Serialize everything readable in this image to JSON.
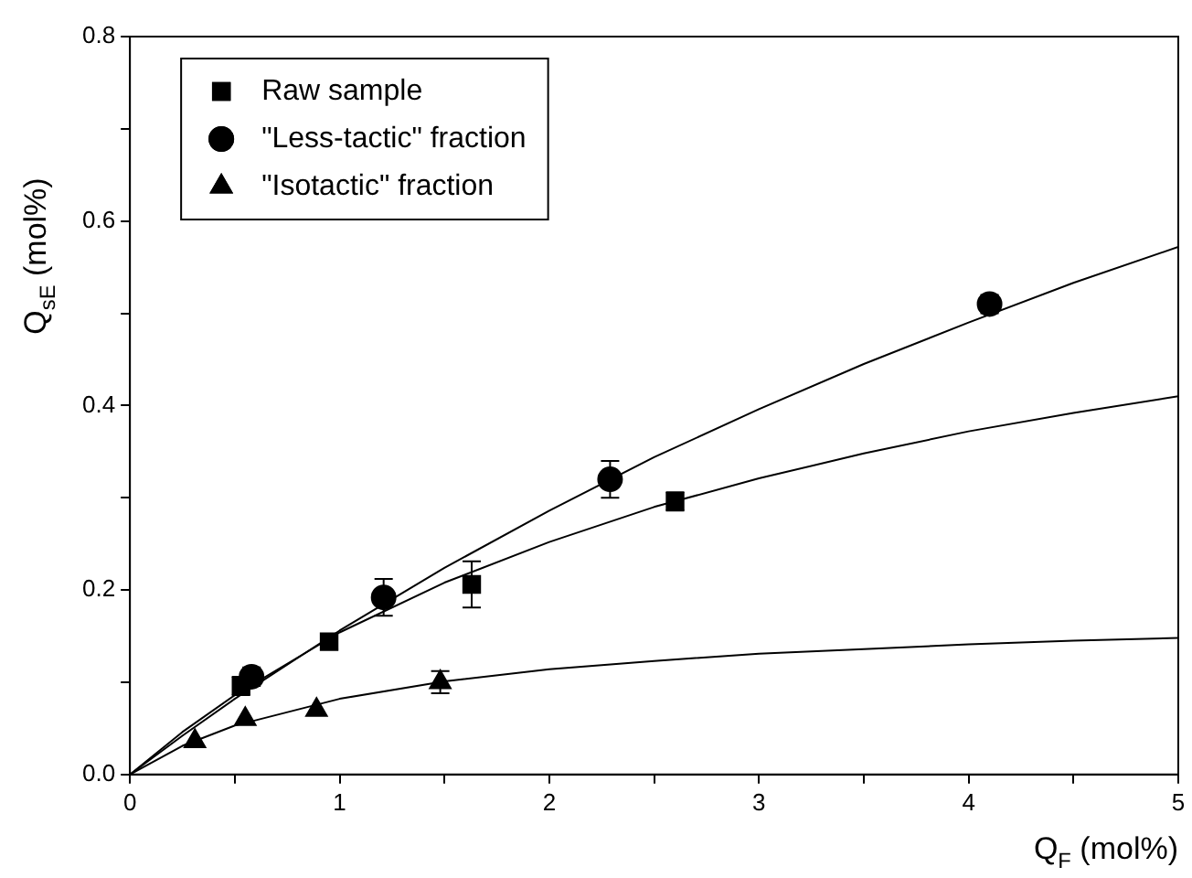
{
  "chart_data": {
    "type": "scatter",
    "xlabel": "Q$_{F}$ (mol%)",
    "ylabel": "Q$_{sE}$ (mol%)",
    "xlim": [
      0,
      5
    ],
    "xticks": [
      0,
      {
        "value": 0.5,
        "label": null
      },
      1,
      {
        "value": 1.5,
        "label": null
      },
      2,
      {
        "value": 2.5,
        "label": null
      },
      3,
      {
        "value": 3.5,
        "label": null
      },
      4,
      {
        "value": 4.5,
        "label": null
      },
      5
    ],
    "ylim": [
      0,
      0.8
    ],
    "yticks": [
      {
        "value": 0,
        "label": "0.0"
      },
      {
        "value": 0.1,
        "label": null
      },
      0.2,
      {
        "value": 0.3,
        "label": null
      },
      0.4,
      {
        "value": 0.5,
        "label": null
      },
      0.6,
      {
        "value": 0.7,
        "label": null
      },
      0.8
    ],
    "grid": false,
    "legend": "top left",
    "series": [
      {
        "name": "Raw sample",
        "type": "scatter",
        "marker": "square",
        "color": "#000000",
        "x": [
          0.53,
          0.95,
          1.63,
          2.6
        ],
        "values": [
          0.096,
          0.144,
          0.206,
          0.296
        ],
        "errors": [
          0.01,
          0.008,
          0.025,
          0.01
        ]
      },
      {
        "name": "\"Less-tactic\" fraction",
        "type": "scatter",
        "marker": "circle",
        "color": "#000000",
        "x": [
          0.58,
          1.21,
          2.29,
          4.1
        ],
        "values": [
          0.106,
          0.192,
          0.32,
          0.51
        ],
        "errors": [
          0.01,
          0.02,
          0.02,
          0.01
        ]
      },
      {
        "name": "\"Isotactic\" fraction",
        "type": "scatter",
        "marker": "triangle",
        "color": "#000000",
        "x": [
          0.31,
          0.55,
          0.89,
          1.48
        ],
        "values": [
          0.036,
          0.06,
          0.07,
          0.1
        ],
        "errors": [
          null,
          null,
          null,
          0.012
        ]
      },
      {
        "type": "line",
        "marker": "none",
        "color": "#000000",
        "x": [
          0,
          0.25,
          0.5,
          1,
          1.5,
          2,
          2.5,
          3,
          3.5,
          4,
          4.5,
          5
        ],
        "values": [
          0,
          0.046,
          0.086,
          0.154,
          0.208,
          0.252,
          0.29,
          0.321,
          0.348,
          0.372,
          0.392,
          0.41
        ]
      },
      {
        "type": "line",
        "marker": "none",
        "color": "#000000",
        "x": [
          0,
          0.25,
          0.5,
          1,
          1.5,
          2,
          2.5,
          3,
          3.5,
          4,
          4.5,
          5
        ],
        "values": [
          0,
          0.042,
          0.082,
          0.156,
          0.224,
          0.286,
          0.344,
          0.396,
          0.445,
          0.49,
          0.533,
          0.572
        ]
      },
      {
        "type": "line",
        "marker": "none",
        "color": "#000000",
        "x": [
          0,
          0.25,
          0.5,
          1,
          1.5,
          2,
          2.5,
          3,
          3.5,
          4,
          4.5,
          5
        ],
        "values": [
          0,
          0.031,
          0.053,
          0.082,
          0.101,
          0.114,
          0.123,
          0.131,
          0.136,
          0.141,
          0.145,
          0.148
        ]
      }
    ]
  }
}
